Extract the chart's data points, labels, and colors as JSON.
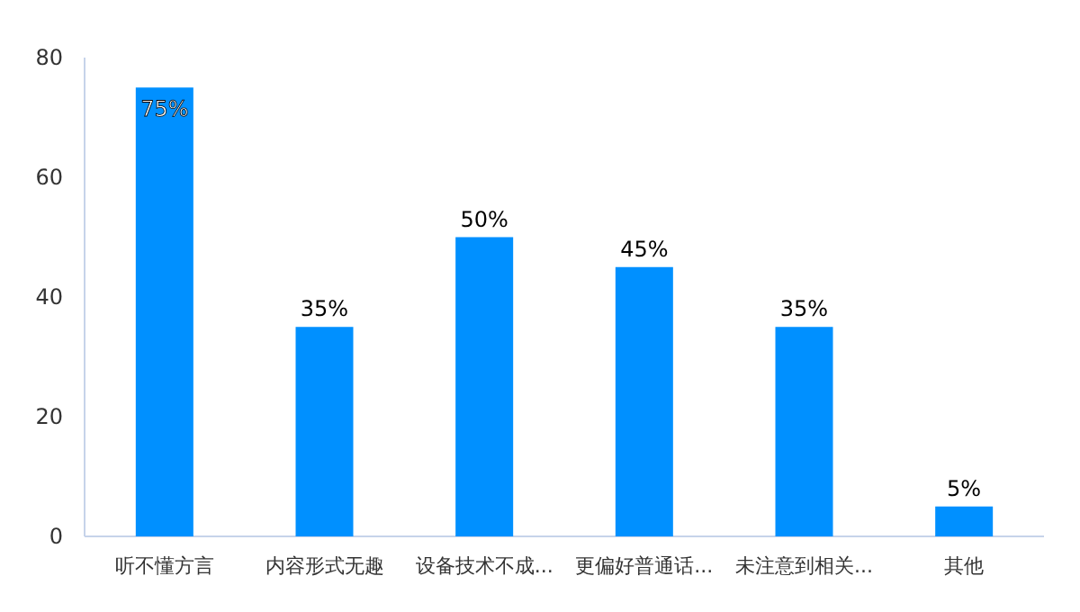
{
  "chart_data": {
    "type": "bar",
    "categories": [
      "听不懂方言",
      "内容形式无趣",
      "设备技术不成...",
      "更偏好普通话...",
      "未注意到相关...",
      "其他"
    ],
    "values": [
      75,
      35,
      50,
      45,
      35,
      5
    ],
    "value_labels": [
      "75%",
      "35%",
      "50%",
      "45%",
      "35%",
      "5%"
    ],
    "color": "#0090ff",
    "ylim": [
      0,
      80
    ],
    "yticks": [
      0,
      20,
      40,
      60,
      80
    ]
  }
}
